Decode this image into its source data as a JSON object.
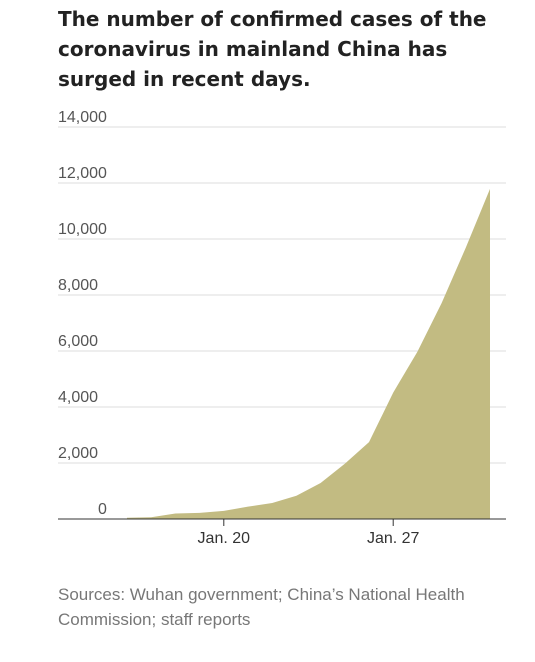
{
  "chart_data": {
    "type": "area",
    "title": "The number of confirmed cases of the coronavirus in mainland China has surged in recent days.",
    "x": [
      "Jan. 16",
      "Jan. 17",
      "Jan. 18",
      "Jan. 19",
      "Jan. 20",
      "Jan. 21",
      "Jan. 22",
      "Jan. 23",
      "Jan. 24",
      "Jan. 25",
      "Jan. 26",
      "Jan. 27",
      "Jan. 28",
      "Jan. 29",
      "Jan. 30",
      "Jan. 31"
    ],
    "values": [
      45,
      62,
      198,
      218,
      291,
      440,
      571,
      830,
      1287,
      1975,
      2744,
      4515,
      5974,
      7711,
      9692,
      11791
    ],
    "x_tick_labels": [
      "Jan. 20",
      "Jan. 27"
    ],
    "y_ticks": [
      "0",
      "2,000",
      "4,000",
      "6,000",
      "8,000",
      "10,000",
      "12,000",
      "14,000"
    ],
    "ylim": [
      0,
      14000
    ],
    "grid": true,
    "colors": {
      "fill": "#c2bb82",
      "grid": "#dddddd",
      "axis": "#333333"
    }
  },
  "sources": "Sources: Wuhan government; China’s National Health Commission; staff reports"
}
